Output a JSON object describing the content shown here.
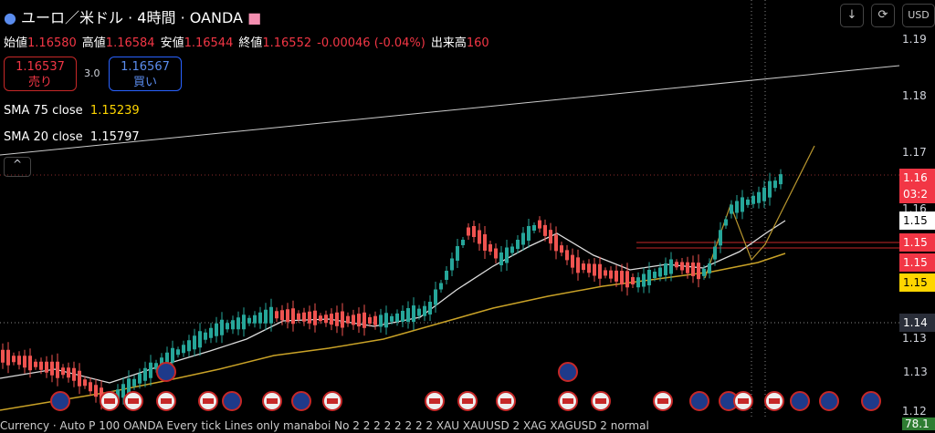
{
  "header": {
    "title": "ユーロ／米ドル · 4時間 · OANDA",
    "ohlc": [
      {
        "label": "始値",
        "value": "1.16580"
      },
      {
        "label": "高値",
        "value": "1.16584"
      },
      {
        "label": "安値",
        "value": "1.16544"
      },
      {
        "label": "終値",
        "value": "1.16552"
      }
    ],
    "change": "-0.00046 (-0.04%)",
    "volume_label": "出来高",
    "volume": "160"
  },
  "toolbar": {
    "currency": "USD"
  },
  "trade": {
    "sell_price": "1.16537",
    "sell_label": "売り",
    "spread": "3.0",
    "buy_price": "1.16567",
    "buy_label": "買い"
  },
  "indicators": [
    {
      "name": "SMA 75 close",
      "value": "1.15239"
    },
    {
      "name": "SMA 20 close",
      "value": "1.15797"
    }
  ],
  "price_scale": {
    "labels": [
      "1.19",
      "1.18",
      "1.17",
      "1.16",
      "1.13",
      "1.12"
    ],
    "badges": [
      {
        "text": "1.16",
        "sub": "03:2"
      },
      {
        "text": "1.15"
      },
      {
        "text": "1.15"
      },
      {
        "text": "1.15"
      },
      {
        "text": "1.15"
      },
      {
        "text": "1.14"
      },
      {
        "text": "1.13"
      }
    ]
  },
  "footer": {
    "text": "Currency · Auto P 100 OANDA Every tick Lines only manaboi No 2 2 2 2 2 2 2 2 XAU XAUUSD 2 XAG XAGUSD 2 normal",
    "value": "78.1"
  }
}
